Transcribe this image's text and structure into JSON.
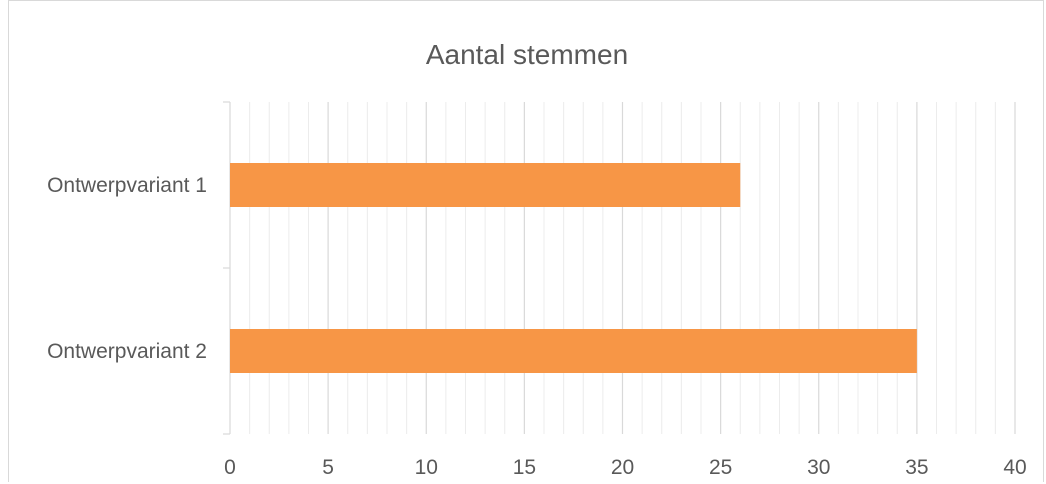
{
  "chart_data": {
    "type": "bar",
    "orientation": "horizontal",
    "title": "Aantal stemmen",
    "categories": [
      "Ontwerpvariant 1",
      "Ontwerpvariant 2"
    ],
    "values": [
      26,
      35
    ],
    "xlim": [
      0,
      40
    ],
    "major_ticks": [
      0,
      5,
      10,
      15,
      20,
      25,
      30,
      35,
      40
    ],
    "minor_tick_step": 1,
    "grid": true,
    "legend": "none",
    "bar_color": "#f79646",
    "gridline_major_color": "#d9d9d9",
    "gridline_minor_color": "#ececec"
  }
}
